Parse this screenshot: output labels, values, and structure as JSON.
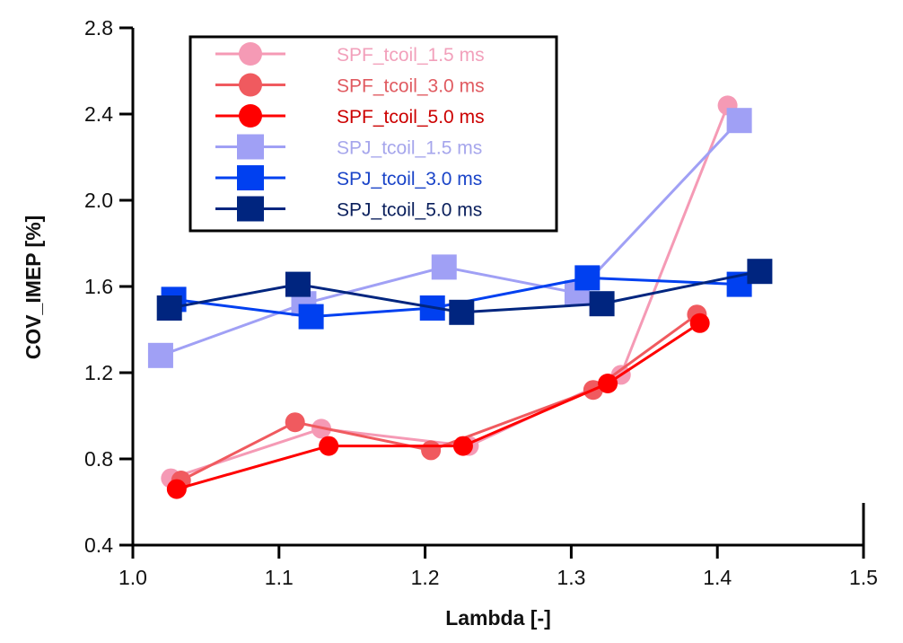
{
  "chart_data": {
    "type": "line",
    "title": "",
    "xlabel": "Lambda [-]",
    "ylabel": "COV_IMEP [%]",
    "xlim": [
      1.0,
      1.5
    ],
    "ylim": [
      0.4,
      2.8
    ],
    "xticks": [
      "1.0",
      "1.1",
      "1.2",
      "1.3",
      "1.4",
      "1.5"
    ],
    "yticks": [
      "0.4",
      "0.8",
      "1.2",
      "1.6",
      "2.0",
      "2.4",
      "2.8"
    ],
    "grid": false,
    "legend_position": "top-left",
    "series": [
      {
        "name": "SPF_tcoil_1.5 ms",
        "marker": "circle",
        "color": "#f59ab5",
        "x": [
          1.026,
          1.129,
          1.23,
          1.334,
          1.407
        ],
        "y": [
          0.71,
          0.94,
          0.86,
          1.19,
          2.44
        ]
      },
      {
        "name": "SPF_tcoil_3.0 ms",
        "marker": "circle",
        "color": "#f05a5f",
        "x": [
          1.033,
          1.111,
          1.204,
          1.315,
          1.386
        ],
        "y": [
          0.7,
          0.97,
          0.84,
          1.12,
          1.47
        ]
      },
      {
        "name": "SPF_tcoil_5.0 ms",
        "marker": "circle",
        "color": "#ff0000",
        "x": [
          1.03,
          1.134,
          1.226,
          1.325,
          1.388
        ],
        "y": [
          0.66,
          0.86,
          0.86,
          1.15,
          1.43
        ]
      },
      {
        "name": "SPJ_tcoil_1.5 ms",
        "marker": "square",
        "color": "#a0a0f5",
        "x": [
          1.019,
          1.117,
          1.213,
          1.304,
          1.415
        ],
        "y": [
          1.28,
          1.52,
          1.69,
          1.57,
          2.37
        ]
      },
      {
        "name": "SPJ_tcoil_3.0 ms",
        "marker": "square",
        "color": "#0040f0",
        "x": [
          1.028,
          1.122,
          1.205,
          1.311,
          1.415
        ],
        "y": [
          1.54,
          1.46,
          1.5,
          1.64,
          1.61
        ]
      },
      {
        "name": "SPJ_tcoil_5.0 ms",
        "marker": "square",
        "color": "#00257f",
        "x": [
          1.025,
          1.113,
          1.225,
          1.321,
          1.429
        ],
        "y": [
          1.5,
          1.61,
          1.48,
          1.52,
          1.67
        ]
      }
    ],
    "legend_text_colors": [
      "#f2a0bb",
      "#e05a60",
      "#cc0000",
      "#a6a6ec",
      "#1a44c8",
      "#0a1f5c"
    ]
  }
}
